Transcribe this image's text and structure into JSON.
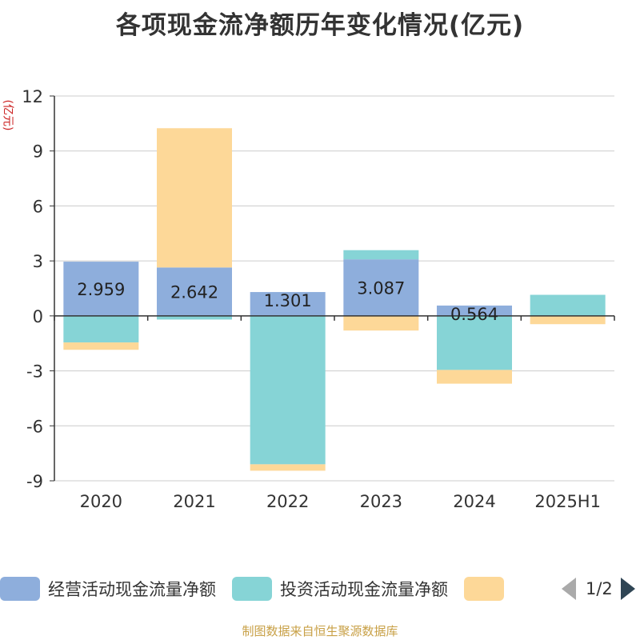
{
  "title": "各项现金流净额历年变化情况(亿元)",
  "unit_label": "(亿元)",
  "source": "制图数据来自恒生聚源数据库",
  "pager": {
    "text": "1/2"
  },
  "colors": {
    "operating": "#8eaedc",
    "investing": "#86d4d6",
    "financing": "#fdd898",
    "axis": "#333333",
    "grid": "#cccccc"
  },
  "chart_data": {
    "type": "bar",
    "stacked": true,
    "categories": [
      "2020",
      "2021",
      "2022",
      "2023",
      "2024",
      "2025H1"
    ],
    "ylim": [
      -9,
      12
    ],
    "yticks": [
      12,
      9,
      6,
      3,
      0,
      -3,
      -6,
      -9
    ],
    "grid": true,
    "legend_position": "bottom",
    "series": [
      {
        "name": "经营活动现金流量净额",
        "values": [
          2.959,
          2.642,
          1.301,
          3.087,
          0.564,
          -0.002
        ],
        "labels": [
          "2.959",
          "2.642",
          "1.301",
          "3.087",
          "0.564",
          ""
        ]
      },
      {
        "name": "投资活动现金流量净额",
        "values": [
          -1.45,
          -0.2,
          -8.1,
          0.5,
          -2.95,
          1.15
        ]
      },
      {
        "name": "",
        "values": [
          -0.4,
          7.6,
          -0.35,
          -0.8,
          -0.75,
          -0.45
        ]
      }
    ]
  }
}
